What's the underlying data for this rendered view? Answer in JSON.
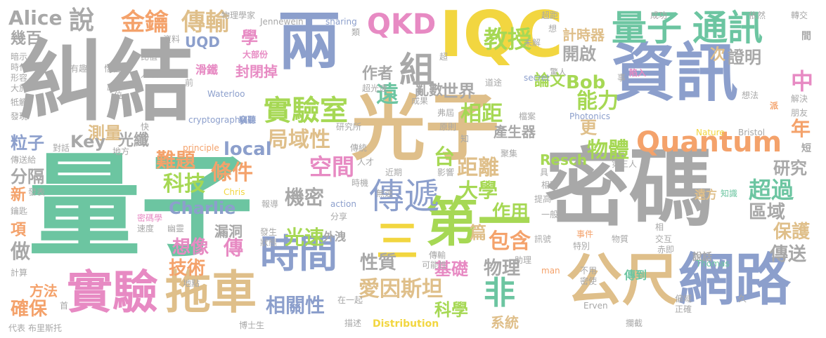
{
  "palette": {
    "green": "#6cc5a1",
    "gray": "#a8a8a8",
    "blue": "#8c9fcc",
    "tan": "#dfbf8a",
    "yellow": "#f2d640",
    "orange": "#f4a26b",
    "pink": "#e78ac3",
    "lime": "#a6d854"
  },
  "words": [
    {
      "text": "量子",
      "color": "green"
    },
    {
      "text": "糾結",
      "color": "gray"
    },
    {
      "text": "光子",
      "color": "tan"
    },
    {
      "text": "密碼",
      "color": "gray"
    },
    {
      "text": "資訊",
      "color": "blue"
    },
    {
      "text": "兩",
      "color": "blue"
    },
    {
      "text": "IQC",
      "color": "yellow"
    },
    {
      "text": "公尺",
      "color": "tan"
    },
    {
      "text": "網路",
      "color": "blue"
    },
    {
      "text": "第一",
      "color": "lime"
    },
    {
      "text": "實驗",
      "color": "pink"
    },
    {
      "text": "拖車",
      "color": "tan"
    },
    {
      "text": "時間",
      "color": "blue"
    },
    {
      "text": "量子",
      "color": "green"
    },
    {
      "text": "通訊",
      "color": "green"
    },
    {
      "text": "Quantum",
      "color": "orange"
    },
    {
      "text": "QKD",
      "color": "pink"
    },
    {
      "text": "傳遞",
      "color": "blue"
    },
    {
      "text": "實驗室",
      "color": "lime"
    },
    {
      "text": "組",
      "color": "gray"
    },
    {
      "text": "非",
      "color": "green"
    },
    {
      "text": "三",
      "color": "yellow"
    },
    {
      "text": "金鑰",
      "color": "orange"
    },
    {
      "text": "傳輸",
      "color": "tan"
    },
    {
      "text": "說",
      "color": "gray"
    },
    {
      "text": "Alice",
      "color": "gray"
    },
    {
      "text": "幾百",
      "color": "gray"
    },
    {
      "text": "學",
      "color": "pink"
    },
    {
      "text": "UQD",
      "color": "blue"
    },
    {
      "text": "遠",
      "color": "green"
    },
    {
      "text": "教授",
      "color": "lime"
    },
    {
      "text": "局域性",
      "color": "tan"
    },
    {
      "text": "相距",
      "color": "lime"
    },
    {
      "text": "能力",
      "color": "lime"
    },
    {
      "text": "Bob",
      "color": "lime"
    },
    {
      "text": "論文",
      "color": "lime"
    },
    {
      "text": "開啟",
      "color": "gray"
    },
    {
      "text": "計時器",
      "color": "tan"
    },
    {
      "text": "次",
      "color": "tan"
    },
    {
      "text": "證明",
      "color": "gray"
    },
    {
      "text": "中",
      "color": "pink"
    },
    {
      "text": "年",
      "color": "orange"
    },
    {
      "text": "更",
      "color": "tan"
    },
    {
      "text": "物體",
      "color": "lime"
    },
    {
      "text": "距離",
      "color": "tan"
    },
    {
      "text": "台",
      "color": "lime"
    },
    {
      "text": "大學",
      "color": "lime"
    },
    {
      "text": "空間",
      "color": "pink"
    },
    {
      "text": "local",
      "color": "blue"
    },
    {
      "text": "條件",
      "color": "orange"
    },
    {
      "text": "難題",
      "color": "orange"
    },
    {
      "text": "科技",
      "color": "lime"
    },
    {
      "text": "Charlie",
      "color": "blue"
    },
    {
      "text": "機密",
      "color": "gray"
    },
    {
      "text": "超過",
      "color": "green"
    },
    {
      "text": "區域",
      "color": "gray"
    },
    {
      "text": "研究",
      "color": "gray"
    },
    {
      "text": "保護",
      "color": "tan"
    },
    {
      "text": "傳送",
      "color": "gray"
    },
    {
      "text": "光速",
      "color": "lime"
    },
    {
      "text": "作用",
      "color": "lime"
    },
    {
      "text": "包含",
      "color": "orange"
    },
    {
      "text": "篇",
      "color": "tan"
    },
    {
      "text": "物理",
      "color": "gray"
    },
    {
      "text": "基礎",
      "color": "pink"
    },
    {
      "text": "性質",
      "color": "gray"
    },
    {
      "text": "愛因斯坦",
      "color": "tan"
    },
    {
      "text": "相關性",
      "color": "blue"
    },
    {
      "text": "科學",
      "color": "lime"
    },
    {
      "text": "系統",
      "color": "tan"
    },
    {
      "text": "想像",
      "color": "pink"
    },
    {
      "text": "傳",
      "color": "pink"
    },
    {
      "text": "技術",
      "color": "orange"
    },
    {
      "text": "確保",
      "color": "orange"
    },
    {
      "text": "方法",
      "color": "orange"
    },
    {
      "text": "做",
      "color": "gray"
    },
    {
      "text": "項",
      "color": "orange"
    },
    {
      "text": "新",
      "color": "orange"
    },
    {
      "text": "分隔",
      "color": "gray"
    },
    {
      "text": "粒子",
      "color": "blue"
    },
    {
      "text": "測量",
      "color": "tan"
    },
    {
      "text": "光纖",
      "color": "gray"
    },
    {
      "text": "Key",
      "color": "gray"
    },
    {
      "text": "世界",
      "color": "gray"
    },
    {
      "text": "作者",
      "color": "gray"
    },
    {
      "text": "亂數",
      "color": "gray"
    },
    {
      "text": "產生器",
      "color": "gray"
    },
    {
      "text": "封閉掉",
      "color": "pink"
    },
    {
      "text": "滑鐵",
      "color": "pink"
    },
    {
      "text": "漏洞",
      "color": "gray"
    },
    {
      "text": "外洩",
      "color": "gray"
    },
    {
      "text": "Resch",
      "color": "lime"
    },
    {
      "text": "Distribution",
      "color": "yellow"
    },
    {
      "text": "傳到",
      "color": "green"
    },
    {
      "text": "遠方",
      "color": "tan"
    },
    {
      "text": "說話",
      "color": "gray"
    },
    {
      "text": "陷入",
      "color": "pink"
    },
    {
      "text": "Jennewein",
      "color": "gray"
    },
    {
      "text": "sharing",
      "color": "blue"
    },
    {
      "text": "物理學家",
      "color": "gray"
    },
    {
      "text": "資料",
      "color": "gray"
    },
    {
      "text": "大部份",
      "color": "pink"
    },
    {
      "text": "超光速",
      "color": "gray"
    },
    {
      "text": "Waterloo",
      "color": "blue"
    },
    {
      "text": "cryptography",
      "color": "blue"
    },
    {
      "text": "principle",
      "color": "orange"
    },
    {
      "text": "研究所",
      "color": "gray"
    },
    {
      "text": "竊聽",
      "color": "blue"
    },
    {
      "text": "Photonics",
      "color": "blue"
    },
    {
      "text": "Nature",
      "color": "yellow"
    },
    {
      "text": "Bristol",
      "color": "gray"
    },
    {
      "text": "Thomas",
      "color": "green"
    },
    {
      "text": "Erven",
      "color": "gray"
    },
    {
      "text": "man",
      "color": "orange"
    },
    {
      "text": "action",
      "color": "blue"
    },
    {
      "text": "Chris",
      "color": "yellow"
    },
    {
      "text": "secret",
      "color": "blue"
    },
    {
      "text": "超距",
      "color": "gray"
    },
    {
      "text": "成功",
      "color": "gray"
    },
    {
      "text": "依然",
      "color": "gray"
    },
    {
      "text": "轉交",
      "color": "gray"
    },
    {
      "text": "間",
      "color": "gray"
    },
    {
      "text": "未解",
      "color": "gray"
    },
    {
      "text": "想",
      "color": "gray"
    },
    {
      "text": "類",
      "color": "gray"
    },
    {
      "text": "事",
      "color": "gray"
    },
    {
      "text": "想法",
      "color": "gray"
    },
    {
      "text": "解決",
      "color": "gray"
    },
    {
      "text": "朋友",
      "color": "gray"
    },
    {
      "text": "派",
      "color": "orange"
    },
    {
      "text": "第三人",
      "color": "gray"
    },
    {
      "text": "知識",
      "color": "green"
    },
    {
      "text": "檔案",
      "color": "gray"
    },
    {
      "text": "聚集",
      "color": "gray"
    },
    {
      "text": "原則",
      "color": "gray"
    },
    {
      "text": "影響",
      "color": "gray"
    },
    {
      "text": "近期",
      "color": "gray"
    },
    {
      "text": "時機",
      "color": "gray"
    },
    {
      "text": "無遠",
      "color": "gray"
    },
    {
      "text": "人才",
      "color": "gray"
    },
    {
      "text": "提高",
      "color": "gray"
    },
    {
      "text": "相關",
      "color": "gray"
    },
    {
      "text": "一般",
      "color": "gray"
    },
    {
      "text": "事件",
      "color": "orange"
    },
    {
      "text": "物質",
      "color": "gray"
    },
    {
      "text": "特別",
      "color": "gray"
    },
    {
      "text": "相",
      "color": "gray"
    },
    {
      "text": "交互",
      "color": "gray"
    },
    {
      "text": "赤即",
      "color": "gray"
    },
    {
      "text": "密使",
      "color": "gray"
    },
    {
      "text": "不用",
      "color": "gray"
    },
    {
      "text": "助理",
      "color": "gray"
    },
    {
      "text": "訊號",
      "color": "gray"
    },
    {
      "text": "傳輸",
      "color": "gray"
    },
    {
      "text": "可能性",
      "color": "gray"
    },
    {
      "text": "發生",
      "color": "gray"
    },
    {
      "text": "狀態",
      "color": "gray"
    },
    {
      "text": "分享",
      "color": "gray"
    },
    {
      "text": "報導",
      "color": "gray"
    },
    {
      "text": "在一起",
      "color": "gray"
    },
    {
      "text": "描述",
      "color": "gray"
    },
    {
      "text": "博士生",
      "color": "gray"
    },
    {
      "text": "布里斯托",
      "color": "gray"
    },
    {
      "text": "代表",
      "color": "gray"
    },
    {
      "text": "首",
      "color": "gray"
    },
    {
      "text": "地點",
      "color": "gray"
    },
    {
      "text": "計算",
      "color": "gray"
    },
    {
      "text": "鑰匙",
      "color": "gray"
    },
    {
      "text": "傳送給",
      "color": "gray"
    },
    {
      "text": "發表",
      "color": "gray"
    },
    {
      "text": "對話",
      "color": "gray"
    },
    {
      "text": "地方",
      "color": "gray"
    },
    {
      "text": "快",
      "color": "gray"
    },
    {
      "text": "發現",
      "color": "gray"
    },
    {
      "text": "牴觸",
      "color": "gray"
    },
    {
      "text": "大於",
      "color": "gray"
    },
    {
      "text": "形容",
      "color": "gray"
    },
    {
      "text": "時代",
      "color": "gray"
    },
    {
      "text": "暗示",
      "color": "gray"
    },
    {
      "text": "有趣",
      "color": "gray"
    },
    {
      "text": "比值",
      "color": "gray"
    },
    {
      "text": "人類",
      "color": "gray"
    },
    {
      "text": "恰當",
      "color": "gray"
    },
    {
      "text": "盧",
      "color": "gray"
    },
    {
      "text": "位",
      "color": "gray"
    },
    {
      "text": "前",
      "color": "gray"
    },
    {
      "text": "超",
      "color": "gray"
    },
    {
      "text": "密碼學",
      "color": "pink"
    },
    {
      "text": "速度",
      "color": "gray"
    },
    {
      "text": "幽靈",
      "color": "gray"
    },
    {
      "text": "成果",
      "color": "gray"
    },
    {
      "text": "弗屆",
      "color": "gray"
    },
    {
      "text": "知",
      "color": "gray"
    },
    {
      "text": "傳統",
      "color": "gray"
    },
    {
      "text": "攔截",
      "color": "gray"
    },
    {
      "text": "正確",
      "color": "gray"
    },
    {
      "text": "久",
      "color": "gray"
    },
    {
      "text": "偏域",
      "color": "gray"
    },
    {
      "text": "短",
      "color": "gray"
    },
    {
      "text": "具",
      "color": "gray"
    },
    {
      "text": "道途",
      "color": "gray"
    },
    {
      "text": "驚人",
      "color": "gray"
    }
  ]
}
